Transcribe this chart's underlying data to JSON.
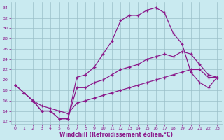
{
  "xlabel": "Windchill (Refroidissement éolien,°C)",
  "xlim": [
    -0.5,
    23.5
  ],
  "ylim": [
    11.5,
    35
  ],
  "xticks": [
    0,
    1,
    2,
    3,
    4,
    5,
    6,
    7,
    8,
    9,
    10,
    11,
    12,
    13,
    14,
    15,
    16,
    17,
    18,
    19,
    20,
    21,
    22,
    23
  ],
  "yticks": [
    12,
    14,
    16,
    18,
    20,
    22,
    24,
    26,
    28,
    30,
    32,
    34
  ],
  "bg_color": "#c9eaf0",
  "line_color": "#8b1a8b",
  "grid_color": "#9bbfc8",
  "line1_x": [
    0,
    1,
    2,
    3,
    4,
    5,
    6,
    7,
    8,
    9,
    10,
    11,
    12,
    13,
    14,
    15,
    16,
    17,
    18,
    19,
    20,
    21,
    22,
    23
  ],
  "line1_y": [
    19.0,
    17.5,
    16.0,
    14.0,
    14.0,
    12.5,
    12.5,
    20.5,
    21.0,
    22.5,
    25.0,
    27.5,
    31.5,
    32.5,
    32.5,
    33.5,
    34.0,
    33.0,
    29.0,
    27.0,
    21.5,
    19.5,
    18.5,
    20.5
  ],
  "line2_x": [
    0,
    1,
    2,
    3,
    4,
    5,
    6,
    7,
    8,
    9,
    10,
    11,
    12,
    13,
    14,
    15,
    16,
    17,
    18,
    19,
    20,
    21,
    22,
    23
  ],
  "line2_y": [
    19.0,
    17.5,
    16.0,
    14.0,
    14.0,
    12.5,
    12.5,
    18.5,
    18.5,
    19.5,
    20.0,
    21.0,
    22.0,
    22.5,
    23.0,
    24.0,
    24.5,
    25.0,
    24.5,
    25.5,
    25.0,
    23.0,
    21.0,
    20.5
  ],
  "line3_x": [
    1,
    2,
    3,
    4,
    5,
    6,
    7,
    8,
    9,
    10,
    11,
    12,
    13,
    14,
    15,
    16,
    17,
    18,
    19,
    20,
    21,
    22,
    23
  ],
  "line3_y": [
    17.5,
    16.0,
    15.0,
    14.5,
    14.0,
    13.5,
    15.5,
    16.0,
    16.5,
    17.0,
    17.5,
    18.0,
    18.5,
    19.0,
    19.5,
    20.0,
    20.5,
    21.0,
    21.5,
    22.0,
    22.0,
    20.5,
    20.5
  ]
}
